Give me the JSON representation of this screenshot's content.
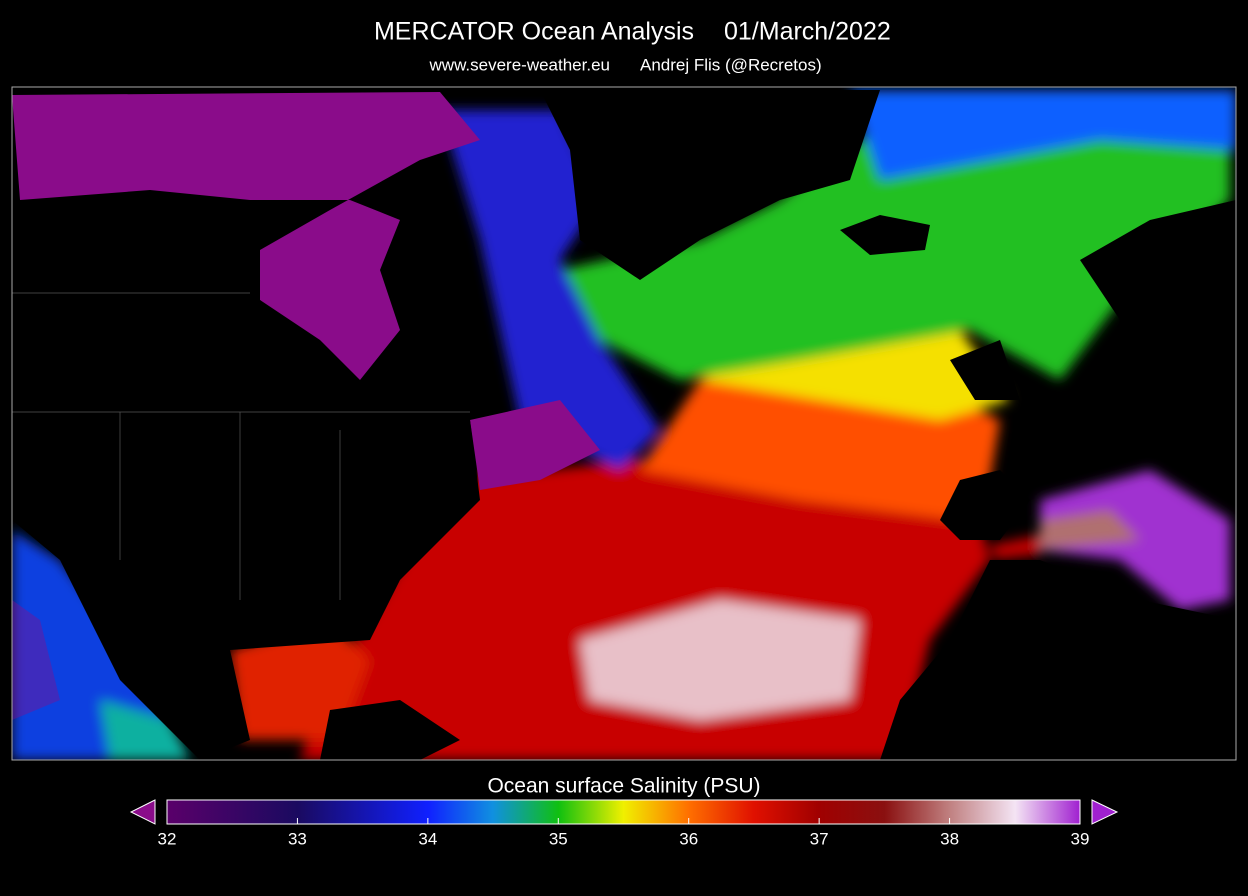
{
  "header": {
    "title": "MERCATOR Ocean Analysis",
    "date": "01/March/2022",
    "website": "www.severe-weather.eu",
    "author": "Andrej Flis (@Recretos)"
  },
  "colorbar": {
    "label": "Ocean surface Salinity (PSU)",
    "range": [
      32,
      39
    ],
    "ticks": [
      32,
      33,
      34,
      35,
      36,
      37,
      38,
      39
    ]
  }
}
